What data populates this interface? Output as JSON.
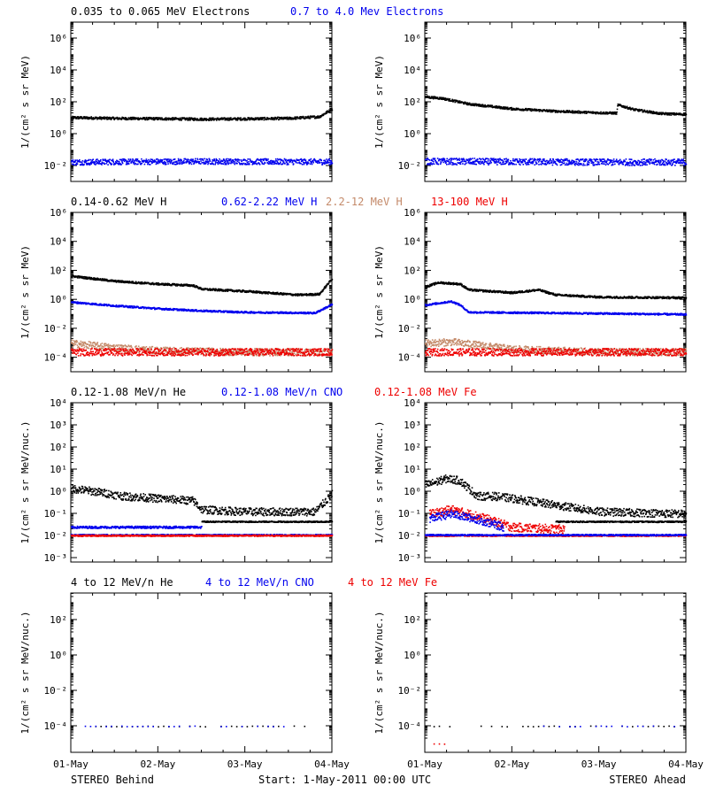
{
  "colors": {
    "black": "#000000",
    "blue": "#0000ee",
    "tan": "#c48a6a",
    "red": "#ee0000",
    "axis": "#000000"
  },
  "footer": {
    "left": "STEREO Behind",
    "center": "Start:  1-May-2011 00:00 UTC",
    "right": "STEREO Ahead"
  },
  "xaxis": {
    "ticks": [
      "01-May",
      "02-May",
      "03-May",
      "04-May"
    ],
    "range_days": [
      0,
      3
    ]
  },
  "chart_data": [
    {
      "row": 0,
      "type": "scatter",
      "legend": [
        {
          "text": "0.035 to 0.065 MeV Electrons",
          "color": "#000000"
        },
        {
          "text": "0.7 to 4.0 Mev Electrons",
          "color": "#0000ee"
        }
      ],
      "ylabel": "1/(cm² s sr MeV)",
      "log_scale": true,
      "yexp_range": [
        -3,
        7
      ],
      "yticks": [
        "10⁻²",
        "10⁰",
        "10²",
        "10⁴",
        "10⁶"
      ],
      "ytick_exps": [
        -2,
        0,
        2,
        4,
        6
      ],
      "behind": {
        "series": [
          {
            "color": "#000000",
            "points": [
              [
                0,
                1.05
              ],
              [
                0.5,
                1.0
              ],
              [
                1.0,
                0.98
              ],
              [
                1.5,
                0.95
              ],
              [
                2.0,
                0.97
              ],
              [
                2.5,
                1.0
              ],
              [
                2.85,
                1.1
              ],
              [
                3.0,
                1.6
              ]
            ],
            "scatter": 0.08
          },
          {
            "color": "#0000ee",
            "points": [
              [
                0,
                -1.75
              ],
              [
                0.75,
                -1.72
              ],
              [
                1.5,
                -1.7
              ],
              [
                2.25,
                -1.72
              ],
              [
                3.0,
                -1.72
              ]
            ],
            "scatter": 0.18
          }
        ]
      },
      "ahead": {
        "series": [
          {
            "color": "#000000",
            "points": [
              [
                0,
                2.35
              ],
              [
                0.2,
                2.25
              ],
              [
                0.5,
                1.9
              ],
              [
                1.0,
                1.6
              ],
              [
                1.5,
                1.45
              ],
              [
                2.0,
                1.35
              ],
              [
                2.2,
                1.33
              ],
              [
                2.21,
                1.85
              ],
              [
                2.4,
                1.55
              ],
              [
                2.7,
                1.3
              ],
              [
                3.0,
                1.25
              ]
            ],
            "scatter": 0.07
          },
          {
            "color": "#0000ee",
            "points": [
              [
                0,
                -1.7
              ],
              [
                1.0,
                -1.72
              ],
              [
                2.0,
                -1.75
              ],
              [
                3.0,
                -1.75
              ]
            ],
            "scatter": 0.2
          }
        ]
      }
    },
    {
      "row": 1,
      "type": "scatter",
      "legend": [
        {
          "text": "0.14-0.62 MeV H",
          "color": "#000000"
        },
        {
          "text": "0.62-2.22 MeV H",
          "color": "#0000ee"
        },
        {
          "text": "2.2-12 MeV H",
          "color": "#c48a6a"
        },
        {
          "text": "13-100 MeV H",
          "color": "#ee0000"
        }
      ],
      "ylabel": "1/(cm² s sr MeV)",
      "log_scale": true,
      "yexp_range": [
        -5,
        6
      ],
      "yticks": [
        "10⁻⁴",
        "10⁻²",
        "10⁰",
        "10²",
        "10⁴",
        "10⁶"
      ],
      "ytick_exps": [
        -4,
        -2,
        0,
        2,
        4,
        6
      ],
      "behind": {
        "series": [
          {
            "color": "#000000",
            "points": [
              [
                0,
                1.65
              ],
              [
                0.5,
                1.3
              ],
              [
                1.0,
                1.1
              ],
              [
                1.4,
                1.0
              ],
              [
                1.5,
                0.75
              ],
              [
                2.0,
                0.6
              ],
              [
                2.6,
                0.35
              ],
              [
                2.85,
                0.4
              ],
              [
                3.0,
                1.5
              ]
            ],
            "scatter": 0.07
          },
          {
            "color": "#0000ee",
            "points": [
              [
                0,
                -0.15
              ],
              [
                0.5,
                -0.4
              ],
              [
                1.0,
                -0.6
              ],
              [
                1.5,
                -0.75
              ],
              [
                2.0,
                -0.85
              ],
              [
                2.8,
                -0.9
              ],
              [
                3.0,
                -0.3
              ]
            ],
            "scatter": 0.06
          },
          {
            "color": "#c48a6a",
            "points": [
              [
                0,
                -3.0
              ],
              [
                0.5,
                -3.3
              ],
              [
                1.0,
                -3.5
              ],
              [
                2.0,
                -3.6
              ],
              [
                3.0,
                -3.6
              ]
            ],
            "scatter": 0.25
          },
          {
            "color": "#ee0000",
            "points": [
              [
                0,
                -3.6
              ],
              [
                1.0,
                -3.6
              ],
              [
                2.0,
                -3.6
              ],
              [
                3.0,
                -3.6
              ]
            ],
            "scatter": 0.25
          }
        ]
      },
      "ahead": {
        "series": [
          {
            "color": "#000000",
            "points": [
              [
                0,
                0.9
              ],
              [
                0.15,
                1.2
              ],
              [
                0.4,
                1.1
              ],
              [
                0.5,
                0.7
              ],
              [
                1.0,
                0.5
              ],
              [
                1.3,
                0.7
              ],
              [
                1.5,
                0.35
              ],
              [
                2.0,
                0.2
              ],
              [
                3.0,
                0.15
              ]
            ],
            "scatter": 0.07
          },
          {
            "color": "#0000ee",
            "points": [
              [
                0,
                -0.35
              ],
              [
                0.3,
                -0.1
              ],
              [
                0.4,
                -0.35
              ],
              [
                0.5,
                -0.85
              ],
              [
                1.5,
                -0.9
              ],
              [
                3.0,
                -1.0
              ]
            ],
            "scatter": 0.06
          },
          {
            "color": "#c48a6a",
            "points": [
              [
                0,
                -3.0
              ],
              [
                0.3,
                -2.9
              ],
              [
                1.0,
                -3.4
              ],
              [
                2.0,
                -3.6
              ],
              [
                3.0,
                -3.6
              ]
            ],
            "scatter": 0.25
          },
          {
            "color": "#ee0000",
            "points": [
              [
                0,
                -3.6
              ],
              [
                1.0,
                -3.6
              ],
              [
                2.0,
                -3.6
              ],
              [
                3.0,
                -3.6
              ]
            ],
            "scatter": 0.25
          }
        ]
      }
    },
    {
      "row": 2,
      "type": "scatter",
      "legend": [
        {
          "text": "0.12-1.08 MeV/n He",
          "color": "#000000"
        },
        {
          "text": "0.12-1.08 MeV/n CNO",
          "color": "#0000ee"
        },
        {
          "text": "0.12-1.08 MeV Fe",
          "color": "#ee0000"
        }
      ],
      "ylabel": "1/(cm² s sr MeV/nuc.)",
      "log_scale": true,
      "yexp_range": [
        -3.2,
        4
      ],
      "yticks": [
        "10⁻³",
        "10⁻²",
        "10⁻¹",
        "10⁰",
        "10¹",
        "10²",
        "10³",
        "10⁴"
      ],
      "ytick_exps": [
        -3,
        -2,
        -1,
        0,
        1,
        2,
        3,
        4
      ],
      "behind": {
        "series": [
          {
            "color": "#000000",
            "points": [
              [
                0,
                0.15
              ],
              [
                0.3,
                0.0
              ],
              [
                0.6,
                -0.2
              ],
              [
                1.0,
                -0.3
              ],
              [
                1.4,
                -0.4
              ],
              [
                1.5,
                -0.8
              ],
              [
                2.0,
                -0.9
              ],
              [
                2.8,
                -0.9
              ],
              [
                3.0,
                -0.1
              ]
            ],
            "scatter": 0.18
          },
          {
            "color": "#000000",
            "points": [
              [
                1.5,
                -1.35
              ],
              [
                3.0,
                -1.35
              ]
            ],
            "scatter": 0.03
          },
          {
            "color": "#0000ee",
            "points": [
              [
                0,
                -1.6
              ],
              [
                1.5,
                -1.6
              ]
            ],
            "scatter": 0.05
          },
          {
            "color": "#0000ee",
            "points": [
              [
                0,
                -1.95
              ],
              [
                3.0,
                -1.95
              ]
            ],
            "scatter": 0.03
          },
          {
            "color": "#ee0000",
            "points": [
              [
                0,
                -1.98
              ],
              [
                3.0,
                -1.98
              ]
            ],
            "scatter": 0.03
          }
        ]
      },
      "ahead": {
        "series": [
          {
            "color": "#000000",
            "points": [
              [
                0,
                0.3
              ],
              [
                0.25,
                0.6
              ],
              [
                0.4,
                0.5
              ],
              [
                0.6,
                -0.2
              ],
              [
                0.8,
                -0.2
              ],
              [
                1.0,
                -0.3
              ],
              [
                1.5,
                -0.6
              ],
              [
                2.0,
                -0.9
              ],
              [
                3.0,
                -1.0
              ]
            ],
            "scatter": 0.18
          },
          {
            "color": "#000000",
            "points": [
              [
                1.5,
                -1.35
              ],
              [
                3.0,
                -1.35
              ]
            ],
            "scatter": 0.03
          },
          {
            "color": "#ee0000",
            "points": [
              [
                0.05,
                -1.0
              ],
              [
                0.3,
                -0.8
              ],
              [
                0.6,
                -1.1
              ],
              [
                1.0,
                -1.6
              ],
              [
                1.6,
                -1.7
              ]
            ],
            "scatter": 0.2
          },
          {
            "color": "#0000ee",
            "points": [
              [
                0.05,
                -1.2
              ],
              [
                0.3,
                -1.0
              ],
              [
                0.6,
                -1.25
              ],
              [
                0.9,
                -1.6
              ]
            ],
            "scatter": 0.18
          },
          {
            "color": "#ee0000",
            "points": [
              [
                0,
                -1.98
              ],
              [
                3.0,
                -1.98
              ]
            ],
            "scatter": 0.03
          },
          {
            "color": "#0000ee",
            "points": [
              [
                0,
                -1.95
              ],
              [
                3.0,
                -1.95
              ]
            ],
            "scatter": 0.03
          }
        ]
      }
    },
    {
      "row": 3,
      "type": "scatter",
      "legend": [
        {
          "text": "4 to 12 MeV/n He",
          "color": "#000000"
        },
        {
          "text": "4 to 12 MeV/n CNO",
          "color": "#0000ee"
        },
        {
          "text": "4 to 12 MeV Fe",
          "color": "#ee0000"
        }
      ],
      "ylabel": "1/(cm² s sr MeV/nuc.)",
      "log_scale": true,
      "yexp_range": [
        -5.5,
        3.5
      ],
      "yticks": [
        "10⁻⁴",
        "10⁻²",
        "10⁰",
        "10²"
      ],
      "ytick_exps": [
        -4,
        -2,
        0,
        2
      ],
      "behind": {
        "series": [
          {
            "color": "#000000",
            "points": [
              [
                0.1,
                -4.0
              ],
              [
                2.7,
                -4.0
              ]
            ],
            "scatter": 0.02,
            "sparse": true
          },
          {
            "color": "#0000ee",
            "points": [
              [
                0.1,
                -4.0
              ],
              [
                2.7,
                -4.0
              ]
            ],
            "scatter": 0.02,
            "sparse": true
          }
        ]
      },
      "ahead": {
        "series": [
          {
            "color": "#000000",
            "points": [
              [
                0.1,
                -4.0
              ],
              [
                2.9,
                -4.0
              ]
            ],
            "scatter": 0.02,
            "sparse": true
          },
          {
            "color": "#0000ee",
            "points": [
              [
                1.3,
                -4.0
              ],
              [
                2.9,
                -4.0
              ]
            ],
            "scatter": 0.02,
            "sparse": true
          },
          {
            "color": "#ee0000",
            "points": [
              [
                0.1,
                -5.0
              ],
              [
                0.25,
                -5.0
              ]
            ],
            "scatter": 0.02,
            "sparse": true
          }
        ]
      }
    }
  ]
}
